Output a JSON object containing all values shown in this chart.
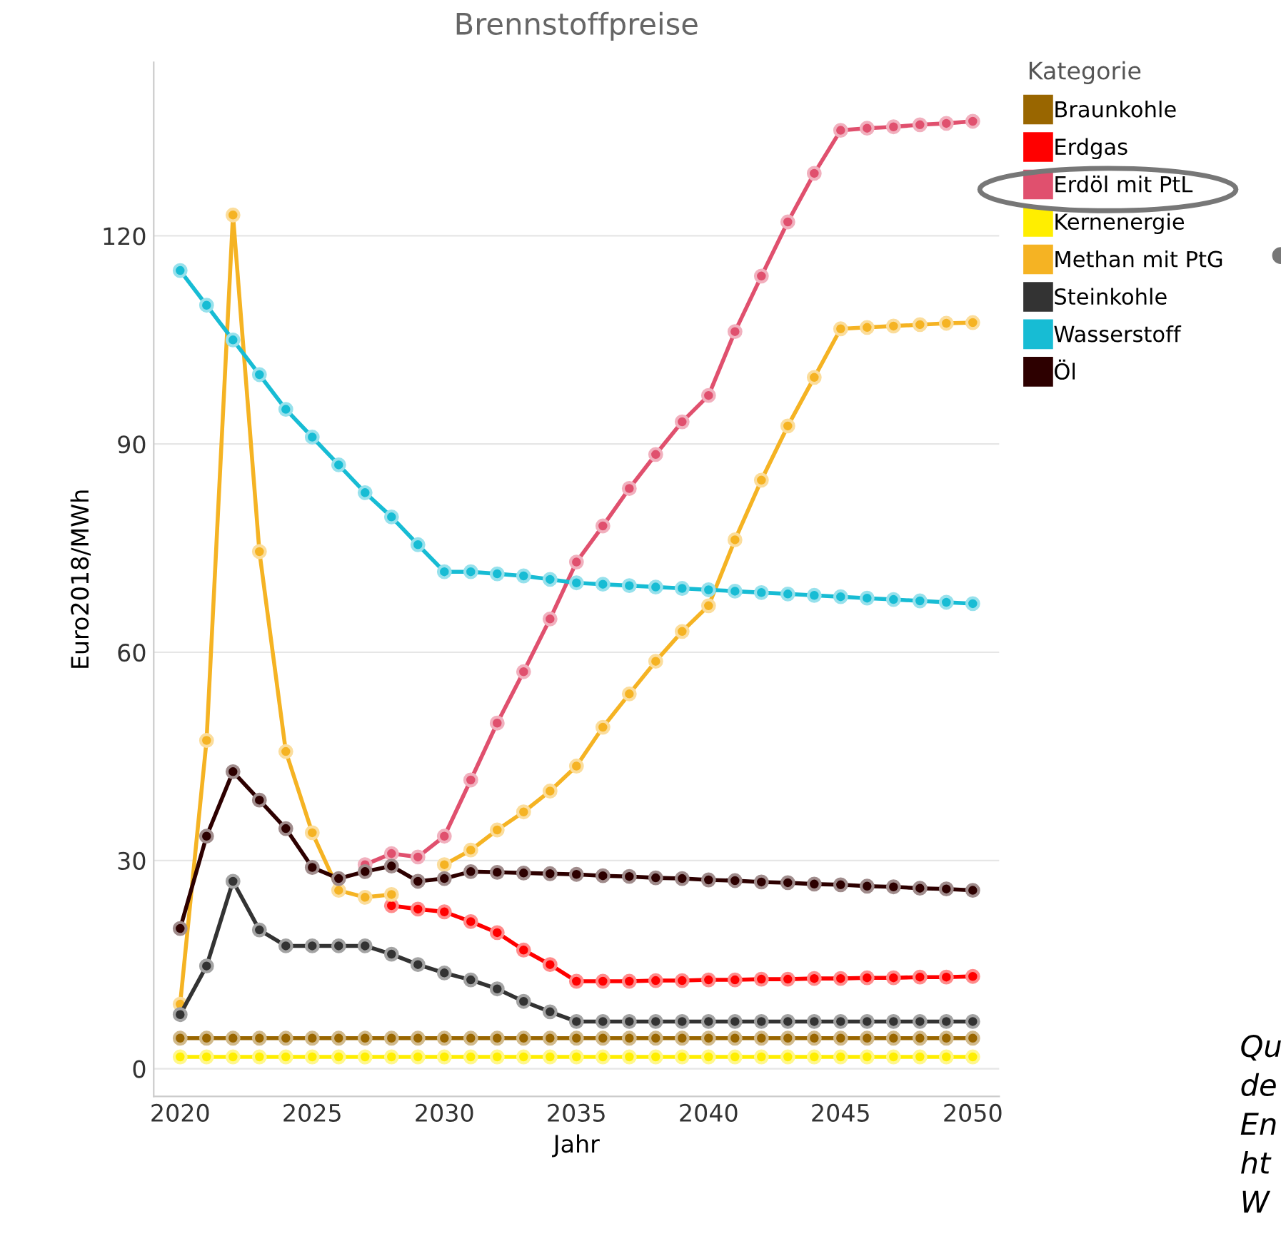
{
  "chart_data": {
    "type": "line",
    "title": "Brennstoffpreise",
    "xlabel": "Jahr",
    "ylabel": "Euro2018/MWh",
    "legend_title": "Kategorie",
    "x": [
      2020,
      2021,
      2022,
      2023,
      2024,
      2025,
      2026,
      2027,
      2028,
      2029,
      2030,
      2031,
      2032,
      2033,
      2034,
      2035,
      2036,
      2037,
      2038,
      2039,
      2040,
      2041,
      2042,
      2043,
      2044,
      2045,
      2046,
      2047,
      2048,
      2049,
      2050
    ],
    "series": [
      {
        "name": "Braunkohle",
        "color": "#996600",
        "values": [
          4.4,
          4.4,
          4.4,
          4.4,
          4.4,
          4.4,
          4.4,
          4.4,
          4.4,
          4.4,
          4.4,
          4.4,
          4.4,
          4.4,
          4.4,
          4.4,
          4.4,
          4.4,
          4.4,
          4.4,
          4.4,
          4.4,
          4.4,
          4.4,
          4.4,
          4.4,
          4.4,
          4.4,
          4.4,
          4.4,
          4.4
        ]
      },
      {
        "name": "Erdgas",
        "color": "#ff0000",
        "values": [
          null,
          null,
          null,
          null,
          null,
          null,
          null,
          null,
          23.5,
          23,
          22.6,
          21.2,
          19.6,
          17.1,
          15,
          12.6,
          12.6,
          12.6,
          12.7,
          12.7,
          12.8,
          12.8,
          12.9,
          12.9,
          13,
          13,
          13.1,
          13.1,
          13.2,
          13.2,
          13.3
        ]
      },
      {
        "name": "Erdöl mit PtL",
        "color": "#e0506e",
        "values": [
          null,
          null,
          null,
          null,
          null,
          null,
          null,
          29.4,
          31,
          30.5,
          33.5,
          41.6,
          49.8,
          57.2,
          64.8,
          73,
          78.2,
          83.6,
          88.5,
          93.2,
          97,
          106.2,
          114.2,
          122,
          129,
          135.2,
          135.5,
          135.7,
          136,
          136.2,
          136.5
        ]
      },
      {
        "name": "Kernenergie",
        "color": "#ffee00",
        "values": [
          1.7,
          1.7,
          1.7,
          1.7,
          1.7,
          1.7,
          1.7,
          1.7,
          1.7,
          1.7,
          1.7,
          1.7,
          1.7,
          1.7,
          1.7,
          1.7,
          1.7,
          1.7,
          1.7,
          1.7,
          1.7,
          1.7,
          1.7,
          1.7,
          1.7,
          1.7,
          1.7,
          1.7,
          1.7,
          1.7,
          1.7
        ]
      },
      {
        "name": "Methan mit PtG",
        "color": "#f5b323",
        "values": [
          9.3,
          47.3,
          123,
          74.5,
          45.7,
          34,
          25.7,
          24.7,
          25.1,
          null,
          29.4,
          31.5,
          34.4,
          37,
          40,
          43.6,
          49.2,
          54,
          58.7,
          63,
          66.7,
          76.2,
          84.8,
          92.6,
          99.6,
          106.6,
          106.8,
          107,
          107.2,
          107.4,
          107.5
        ]
      },
      {
        "name": "Steinkohle",
        "color": "#333333",
        "values": [
          7.8,
          14.8,
          27,
          20,
          17.7,
          17.7,
          17.7,
          17.7,
          16.5,
          15,
          13.8,
          12.8,
          11.5,
          9.7,
          8.2,
          6.8,
          6.8,
          6.8,
          6.8,
          6.8,
          6.8,
          6.8,
          6.8,
          6.8,
          6.8,
          6.8,
          6.8,
          6.8,
          6.8,
          6.8,
          6.8
        ]
      },
      {
        "name": "Wasserstoff",
        "color": "#17bcd4",
        "values": [
          115,
          110,
          105,
          100,
          95,
          91,
          87,
          83,
          79.5,
          75.5,
          71.6,
          71.6,
          71.3,
          71,
          70.5,
          70,
          69.8,
          69.6,
          69.4,
          69.2,
          69,
          68.8,
          68.6,
          68.4,
          68.2,
          68,
          67.8,
          67.6,
          67.4,
          67.2,
          67
        ]
      },
      {
        "name": "Öl",
        "color": "#2d0000",
        "values": [
          20.2,
          33.5,
          42.8,
          38.7,
          34.6,
          29,
          27.4,
          28.4,
          29.2,
          27,
          27.4,
          28.4,
          28.3,
          28.2,
          28.1,
          28,
          27.8,
          27.7,
          27.5,
          27.4,
          27.2,
          27.1,
          26.9,
          26.8,
          26.6,
          26.5,
          26.3,
          26.2,
          26,
          25.9,
          25.7
        ]
      }
    ],
    "xlim": [
      2019,
      2051
    ],
    "ylim": [
      -4,
      145
    ],
    "xticks": [
      2020,
      2025,
      2030,
      2035,
      2040,
      2045,
      2050
    ],
    "yticks": [
      0,
      30,
      60,
      90,
      120
    ],
    "grid": "y",
    "legend": "top right",
    "marker": "circle",
    "line_style": "solid",
    "annotations": [
      "Qu\nde\nEn\nht\nW"
    ]
  }
}
